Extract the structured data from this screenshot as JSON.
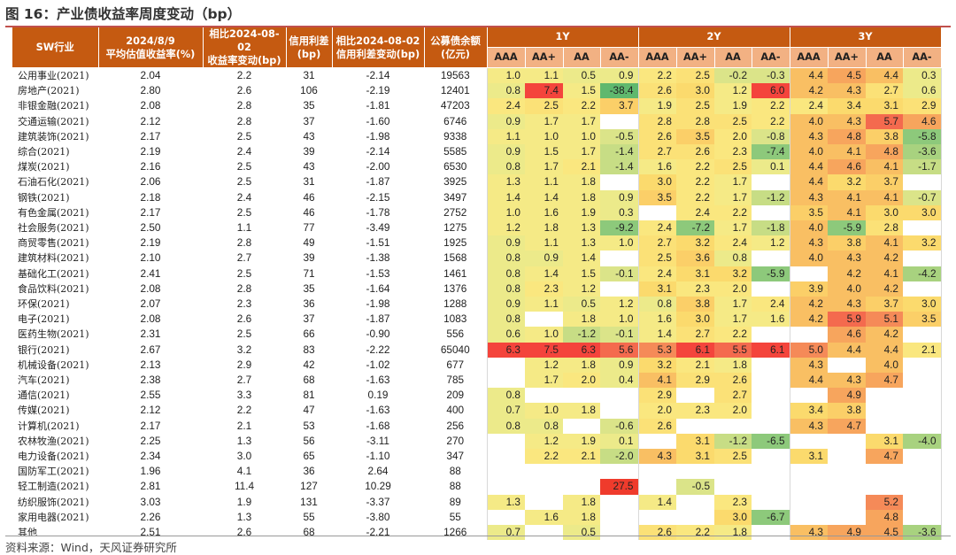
{
  "title": "图 16：产业债收益率周度变动（bp）",
  "source": "资料来源：Wind，天风证券研究所",
  "headers": {
    "industry": "SW行业",
    "avg_yield": "2024/8/9\n平均估值收益率(%)",
    "yield_change": "相比2024-08-02\n收益率变动(bp)",
    "spread": "信用利差\n(bp)",
    "spread_change": "相比2024-08-02\n信用利差变动(bp)",
    "balance": "公募债余额\n(亿元)",
    "groups": [
      "1Y",
      "2Y",
      "3Y"
    ],
    "ratings": [
      "AAA",
      "AA+",
      "AA",
      "AA-"
    ]
  },
  "rows": [
    {
      "name": "公用事业(2021)",
      "y": "2.04",
      "c": "2.2",
      "s": "31",
      "sc": "-2.14",
      "b": "19563",
      "v": [
        "1.0",
        "1.1",
        "0.5",
        "0.9",
        "2.2",
        "2.5",
        "-0.2",
        "-0.3",
        "4.4",
        "4.5",
        "4.4",
        "0.3"
      ]
    },
    {
      "name": "房地产(2021)",
      "y": "2.80",
      "c": "2.6",
      "s": "106",
      "sc": "-2.19",
      "b": "12401",
      "v": [
        "0.8",
        "7.4",
        "1.5",
        "-38.4",
        "2.6",
        "3.0",
        "1.2",
        "6.0",
        "4.2",
        "4.3",
        "2.7",
        "0.6"
      ]
    },
    {
      "name": "非银金融(2021)",
      "y": "2.08",
      "c": "2.8",
      "s": "35",
      "sc": "-1.81",
      "b": "47203",
      "v": [
        "2.4",
        "2.5",
        "2.2",
        "3.7",
        "1.9",
        "2.5",
        "1.9",
        "2.2",
        "2.4",
        "3.4",
        "3.1",
        "2.9"
      ]
    },
    {
      "name": "交通运输(2021)",
      "y": "2.12",
      "c": "2.8",
      "s": "37",
      "sc": "-1.60",
      "b": "6746",
      "v": [
        "0.9",
        "1.7",
        "1.7",
        "",
        "2.8",
        "2.8",
        "2.5",
        "2.2",
        "4.0",
        "4.3",
        "5.7",
        "4.6"
      ]
    },
    {
      "name": "建筑装饰(2021)",
      "y": "2.17",
      "c": "2.5",
      "s": "43",
      "sc": "-1.98",
      "b": "9338",
      "v": [
        "1.1",
        "1.0",
        "1.0",
        "-0.5",
        "2.6",
        "3.5",
        "2.0",
        "-0.8",
        "4.3",
        "4.8",
        "3.8",
        "-5.8"
      ]
    },
    {
      "name": "综合(2021)",
      "y": "2.19",
      "c": "2.4",
      "s": "39",
      "sc": "-2.14",
      "b": "5585",
      "v": [
        "0.9",
        "1.5",
        "1.7",
        "-1.4",
        "2.7",
        "2.6",
        "2.3",
        "-7.4",
        "4.0",
        "4.1",
        "4.8",
        "-3.6"
      ]
    },
    {
      "name": "煤炭(2021)",
      "y": "2.16",
      "c": "2.5",
      "s": "43",
      "sc": "-2.00",
      "b": "6530",
      "v": [
        "0.8",
        "1.7",
        "2.1",
        "-1.4",
        "1.6",
        "2.2",
        "2.5",
        "0.1",
        "4.4",
        "4.6",
        "4.1",
        "-1.7"
      ]
    },
    {
      "name": "石油石化(2021)",
      "y": "2.06",
      "c": "2.5",
      "s": "31",
      "sc": "-1.87",
      "b": "3925",
      "v": [
        "1.3",
        "1.1",
        "1.8",
        "",
        "3.0",
        "2.2",
        "1.7",
        "",
        "4.4",
        "3.2",
        "3.7",
        ""
      ]
    },
    {
      "name": "钢铁(2021)",
      "y": "2.18",
      "c": "2.4",
      "s": "46",
      "sc": "-2.15",
      "b": "3497",
      "v": [
        "1.4",
        "1.4",
        "1.8",
        "0.9",
        "3.5",
        "2.2",
        "1.7",
        "-1.2",
        "4.3",
        "4.1",
        "4.1",
        "-0.7"
      ]
    },
    {
      "name": "有色金属(2021)",
      "y": "2.17",
      "c": "2.5",
      "s": "46",
      "sc": "-1.78",
      "b": "2752",
      "v": [
        "1.0",
        "1.6",
        "1.9",
        "0.3",
        "",
        "2.4",
        "2.2",
        "",
        "3.5",
        "4.1",
        "3.0",
        "3.0"
      ]
    },
    {
      "name": "社会服务(2021)",
      "y": "2.50",
      "c": "1.1",
      "s": "77",
      "sc": "-3.49",
      "b": "1275",
      "v": [
        "1.2",
        "1.8",
        "1.3",
        "-9.2",
        "2.4",
        "-7.2",
        "1.7",
        "-1.8",
        "4.0",
        "-5.9",
        "2.8",
        ""
      ]
    },
    {
      "name": "商贸零售(2021)",
      "y": "2.19",
      "c": "2.8",
      "s": "49",
      "sc": "-1.51",
      "b": "1925",
      "v": [
        "0.9",
        "1.1",
        "1.3",
        "1.0",
        "2.7",
        "3.2",
        "2.4",
        "1.2",
        "4.3",
        "3.8",
        "4.1",
        "3.2"
      ]
    },
    {
      "name": "建筑材料(2021)",
      "y": "2.10",
      "c": "2.7",
      "s": "39",
      "sc": "-1.38",
      "b": "1568",
      "v": [
        "0.8",
        "0.9",
        "1.4",
        "",
        "2.5",
        "3.6",
        "0.8",
        "",
        "4.0",
        "4.3",
        "4.2",
        ""
      ]
    },
    {
      "name": "基础化工(2021)",
      "y": "2.41",
      "c": "2.5",
      "s": "71",
      "sc": "-1.53",
      "b": "1461",
      "v": [
        "0.8",
        "1.4",
        "1.5",
        "-0.1",
        "2.4",
        "3.1",
        "3.2",
        "-5.9",
        "",
        "4.2",
        "4.1",
        "-4.2"
      ]
    },
    {
      "name": "食品饮料(2021)",
      "y": "2.08",
      "c": "2.8",
      "s": "35",
      "sc": "-1.64",
      "b": "1376",
      "v": [
        "0.8",
        "2.3",
        "1.2",
        "",
        "3.1",
        "2.3",
        "2.0",
        "",
        "3.9",
        "4.0",
        "4.2",
        ""
      ]
    },
    {
      "name": "环保(2021)",
      "y": "2.07",
      "c": "2.3",
      "s": "36",
      "sc": "-1.98",
      "b": "1288",
      "v": [
        "0.9",
        "1.1",
        "0.5",
        "1.2",
        "0.8",
        "3.8",
        "1.7",
        "2.4",
        "4.2",
        "4.3",
        "3.7",
        "3.0"
      ]
    },
    {
      "name": "电子(2021)",
      "y": "2.08",
      "c": "2.6",
      "s": "37",
      "sc": "-1.87",
      "b": "1083",
      "v": [
        "0.8",
        "",
        "1.8",
        "1.0",
        "1.6",
        "3.0",
        "1.7",
        "1.6",
        "4.2",
        "5.9",
        "5.1",
        "3.5"
      ]
    },
    {
      "name": "医药生物(2021)",
      "y": "2.31",
      "c": "2.5",
      "s": "66",
      "sc": "-0.90",
      "b": "556",
      "v": [
        "0.6",
        "1.0",
        "-1.2",
        "-0.1",
        "1.4",
        "2.7",
        "2.2",
        "",
        "",
        "4.6",
        "4.2",
        ""
      ]
    },
    {
      "name": "银行(2021)",
      "y": "2.67",
      "c": "3.2",
      "s": "83",
      "sc": "-2.22",
      "b": "65040",
      "v": [
        "6.3",
        "7.5",
        "6.3",
        "5.6",
        "5.3",
        "6.1",
        "5.5",
        "6.1",
        "5.0",
        "4.4",
        "4.4",
        "2.1"
      ]
    },
    {
      "name": "机械设备(2021)",
      "y": "2.13",
      "c": "2.9",
      "s": "42",
      "sc": "-1.02",
      "b": "677",
      "v": [
        "",
        "1.2",
        "1.8",
        "0.9",
        "3.2",
        "2.1",
        "1.8",
        "",
        "4.3",
        "",
        "4.0",
        ""
      ]
    },
    {
      "name": "汽车(2021)",
      "y": "2.38",
      "c": "2.7",
      "s": "68",
      "sc": "-1.63",
      "b": "785",
      "v": [
        "",
        "1.7",
        "2.0",
        "0.4",
        "4.1",
        "2.9",
        "2.6",
        "",
        "4.4",
        "4.3",
        "4.7",
        ""
      ]
    },
    {
      "name": "通信(2021)",
      "y": "2.55",
      "c": "3.3",
      "s": "81",
      "sc": "0.19",
      "b": "209",
      "v": [
        "0.8",
        "",
        "",
        "",
        "2.9",
        "",
        "2.7",
        "",
        "",
        "4.9",
        "",
        ""
      ]
    },
    {
      "name": "传媒(2021)",
      "y": "2.12",
      "c": "2.2",
      "s": "47",
      "sc": "-1.63",
      "b": "400",
      "v": [
        "0.7",
        "1.0",
        "1.8",
        "",
        "2.0",
        "2.3",
        "2.0",
        "",
        "3.4",
        "3.8",
        "",
        ""
      ]
    },
    {
      "name": "计算机(2021)",
      "y": "2.17",
      "c": "2.1",
      "s": "53",
      "sc": "-1.68",
      "b": "256",
      "v": [
        "0.8",
        "0.8",
        "",
        "-0.6",
        "2.6",
        "",
        "",
        "",
        "4.3",
        "4.7",
        "",
        ""
      ]
    },
    {
      "name": "农林牧渔(2021)",
      "y": "2.25",
      "c": "1.3",
      "s": "56",
      "sc": "-3.11",
      "b": "270",
      "v": [
        "",
        "1.2",
        "1.9",
        "0.1",
        "",
        "3.1",
        "-1.2",
        "-6.5",
        "",
        "",
        "3.1",
        "-4.0"
      ]
    },
    {
      "name": "电力设备(2021)",
      "y": "2.34",
      "c": "3.0",
      "s": "65",
      "sc": "-1.10",
      "b": "347",
      "v": [
        "",
        "2.2",
        "2.1",
        "-2.0",
        "4.3",
        "3.1",
        "2.5",
        "",
        "3.1",
        "",
        "4.7",
        ""
      ]
    },
    {
      "name": "国防军工(2021)",
      "y": "1.96",
      "c": "4.1",
      "s": "36",
      "sc": "2.64",
      "b": "88",
      "v": [
        "",
        "",
        "",
        "",
        "",
        "",
        "",
        "",
        "",
        "",
        "",
        ""
      ]
    },
    {
      "name": "轻工制造(2021)",
      "y": "2.81",
      "c": "11.4",
      "s": "127",
      "sc": "10.29",
      "b": "88",
      "v": [
        "",
        "",
        "",
        "27.5",
        "",
        "-0.5",
        "",
        "",
        "",
        "",
        "",
        ""
      ]
    },
    {
      "name": "纺织服饰(2021)",
      "y": "3.03",
      "c": "1.9",
      "s": "131",
      "sc": "-3.37",
      "b": "89",
      "v": [
        "1.3",
        "",
        "1.8",
        "",
        "1.4",
        "",
        "2.3",
        "",
        "",
        "",
        "5.2",
        ""
      ]
    },
    {
      "name": "家用电器(2021)",
      "y": "2.26",
      "c": "1.3",
      "s": "55",
      "sc": "-3.80",
      "b": "55",
      "v": [
        "",
        "1.6",
        "1.8",
        "",
        "",
        "",
        "3.0",
        "-6.7",
        "",
        "",
        "4.8",
        ""
      ]
    },
    {
      "name": "其他",
      "y": "2.51",
      "c": "2.6",
      "s": "68",
      "sc": "-2.21",
      "b": "1266",
      "v": [
        "0.7",
        "",
        "0.5",
        "",
        "2.6",
        "2.2",
        "1.8",
        "",
        "4.3",
        "4.9",
        "4.5",
        "-3.6"
      ]
    }
  ]
}
